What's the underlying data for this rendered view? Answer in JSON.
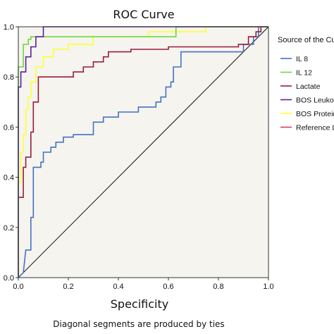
{
  "chart_data": {
    "type": "line",
    "title": "ROC Curve",
    "xlabel": "Specificity",
    "ylabel": "",
    "xlim": [
      0,
      1
    ],
    "ylim": [
      0,
      1
    ],
    "xticks": [
      "0.0",
      "0.2",
      "0.4",
      "0.6",
      "0.8",
      "1.0"
    ],
    "yticks": [
      "0.0",
      "0.2",
      "0.4",
      "0.6",
      "0.8",
      "1.0"
    ],
    "grid": false,
    "legend_position": "right",
    "legend_title": "Source of the Curve",
    "footnote": "Diagonal segments are produced by ties",
    "colors": {
      "plot_background": "#f5f4ee",
      "axis": "#333333",
      "il8": "#4472c4",
      "il12": "#70d640",
      "lactate": "#9b1b3c",
      "bos_leuko": "#5a1ea0",
      "bos_protein": "#ffff33",
      "reference": "#d04060"
    },
    "series": [
      {
        "name": "IL 8",
        "key": "il8",
        "x": [
          0.0,
          0.02,
          0.03,
          0.05,
          0.05,
          0.06,
          0.06,
          0.09,
          0.09,
          0.1,
          0.1,
          0.13,
          0.13,
          0.15,
          0.15,
          0.18,
          0.18,
          0.22,
          0.22,
          0.3,
          0.3,
          0.34,
          0.34,
          0.4,
          0.4,
          0.48,
          0.48,
          0.55,
          0.55,
          0.57,
          0.57,
          0.59,
          0.59,
          0.61,
          0.61,
          0.62,
          0.62,
          0.65,
          0.65,
          0.9,
          0.9,
          0.94,
          0.94,
          0.96,
          0.96,
          1.0
        ],
        "y": [
          0.0,
          0.02,
          0.11,
          0.11,
          0.24,
          0.24,
          0.44,
          0.44,
          0.46,
          0.46,
          0.5,
          0.5,
          0.52,
          0.52,
          0.54,
          0.54,
          0.56,
          0.56,
          0.57,
          0.57,
          0.62,
          0.62,
          0.64,
          0.64,
          0.66,
          0.66,
          0.68,
          0.68,
          0.7,
          0.7,
          0.72,
          0.72,
          0.76,
          0.76,
          0.78,
          0.78,
          0.84,
          0.84,
          0.9,
          0.9,
          0.93,
          0.93,
          0.96,
          0.96,
          1.0,
          1.0
        ]
      },
      {
        "name": "IL 12",
        "key": "il12",
        "x": [
          0.0,
          0.0,
          0.02,
          0.02,
          0.04,
          0.04,
          0.05,
          0.05,
          0.29,
          0.29,
          0.63,
          0.63,
          1.0
        ],
        "y": [
          0.0,
          0.84,
          0.84,
          0.93,
          0.93,
          0.95,
          0.95,
          0.96,
          0.96,
          0.96,
          0.96,
          1.0,
          1.0
        ]
      },
      {
        "name": "Lactate",
        "key": "lactate",
        "x": [
          0.0,
          0.0,
          0.02,
          0.02,
          0.03,
          0.03,
          0.05,
          0.05,
          0.06,
          0.06,
          0.08,
          0.08,
          0.22,
          0.22,
          0.26,
          0.26,
          0.3,
          0.3,
          0.34,
          0.34,
          0.36,
          0.36,
          0.45,
          0.45,
          0.6,
          0.6,
          0.88,
          0.88,
          0.92,
          0.92,
          0.95,
          0.95,
          0.97,
          0.97,
          1.0
        ],
        "y": [
          0.0,
          0.32,
          0.32,
          0.44,
          0.44,
          0.48,
          0.48,
          0.58,
          0.58,
          0.7,
          0.7,
          0.8,
          0.8,
          0.82,
          0.82,
          0.84,
          0.84,
          0.86,
          0.86,
          0.88,
          0.88,
          0.9,
          0.9,
          0.91,
          0.91,
          0.92,
          0.92,
          0.93,
          0.93,
          0.96,
          0.96,
          0.98,
          0.98,
          1.0,
          1.0
        ]
      },
      {
        "name": "BOS Leukocytes",
        "key": "bos_leuko",
        "x": [
          0.0,
          0.0,
          0.01,
          0.01,
          0.03,
          0.03,
          0.05,
          0.05,
          0.07,
          0.07,
          0.1,
          0.1,
          0.96,
          0.96,
          1.0
        ],
        "y": [
          0.0,
          0.76,
          0.76,
          0.82,
          0.82,
          0.88,
          0.88,
          0.92,
          0.92,
          0.96,
          0.96,
          1.0,
          1.0,
          1.0,
          1.0
        ]
      },
      {
        "name": "BOS Proteins",
        "key": "bos_protein",
        "x": [
          0.0,
          0.0,
          0.01,
          0.01,
          0.02,
          0.02,
          0.03,
          0.03,
          0.04,
          0.04,
          0.05,
          0.05,
          0.07,
          0.07,
          0.1,
          0.1,
          0.14,
          0.14,
          0.2,
          0.2,
          0.3,
          0.3,
          0.52,
          0.52,
          0.75,
          0.75,
          1.0
        ],
        "y": [
          0.0,
          0.38,
          0.38,
          0.5,
          0.5,
          0.57,
          0.57,
          0.67,
          0.67,
          0.72,
          0.72,
          0.78,
          0.78,
          0.84,
          0.84,
          0.88,
          0.88,
          0.91,
          0.91,
          0.93,
          0.93,
          0.96,
          0.96,
          0.98,
          0.98,
          1.0,
          1.0
        ]
      },
      {
        "name": "Reference Line",
        "key": "reference",
        "x": [
          0.0,
          1.0
        ],
        "y": [
          0.0,
          1.0
        ]
      }
    ]
  }
}
